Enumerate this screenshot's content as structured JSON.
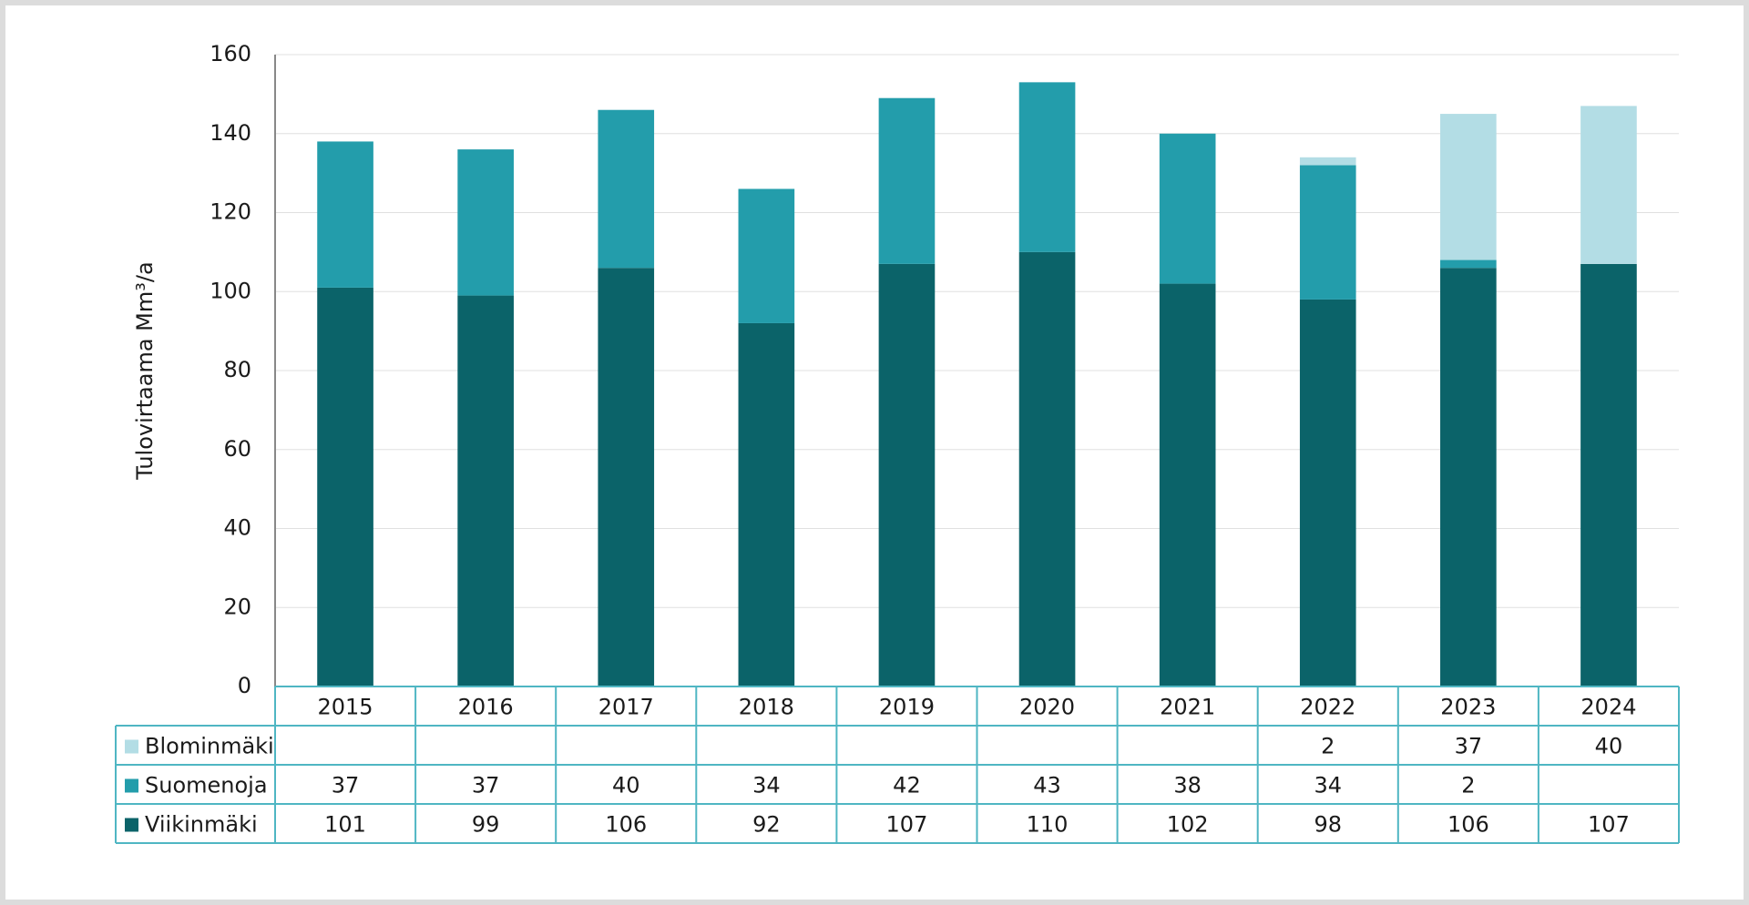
{
  "chart_data": {
    "type": "stacked-bar",
    "y_label": "Tulovirtaama Mm³/a",
    "categories": [
      "2015",
      "2016",
      "2017",
      "2018",
      "2019",
      "2020",
      "2021",
      "2022",
      "2023",
      "2024"
    ],
    "series": [
      {
        "name": "Viikinmäki",
        "color": "#0b6369",
        "values": [
          101,
          99,
          106,
          92,
          107,
          110,
          102,
          98,
          106,
          107
        ]
      },
      {
        "name": "Suomenoja",
        "color": "#239dab",
        "values": [
          37,
          37,
          40,
          34,
          42,
          43,
          38,
          34,
          2,
          null
        ]
      },
      {
        "name": "Blominmäki",
        "color": "#b3dde5",
        "values": [
          null,
          null,
          null,
          null,
          null,
          null,
          null,
          2,
          37,
          40
        ]
      }
    ],
    "ylim": [
      0,
      160
    ],
    "yticks": [
      0,
      20,
      40,
      60,
      80,
      100,
      120,
      140,
      160
    ],
    "grid": true,
    "data_table": true
  }
}
